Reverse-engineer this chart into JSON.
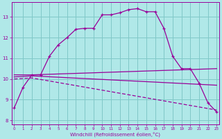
{
  "xlabel": "Windchill (Refroidissement éolien,°C)",
  "bg_color": "#b0e8e8",
  "grid_color": "#80c8c8",
  "line_color": "#990099",
  "x_ticks": [
    0,
    1,
    2,
    3,
    4,
    5,
    6,
    7,
    8,
    9,
    10,
    11,
    12,
    13,
    14,
    15,
    16,
    17,
    18,
    19,
    20,
    21,
    22,
    23
  ],
  "y_ticks": [
    8,
    9,
    10,
    11,
    12,
    13
  ],
  "ylim": [
    7.8,
    13.7
  ],
  "xlim": [
    -0.3,
    23.3
  ],
  "curve1_x": [
    0,
    1,
    2,
    3,
    4,
    5,
    6,
    7,
    8,
    9,
    10,
    11,
    12,
    13,
    14,
    15,
    16,
    17,
    18,
    19,
    20,
    21,
    22,
    23
  ],
  "curve1_y": [
    8.6,
    9.6,
    10.2,
    10.2,
    11.1,
    11.65,
    12.0,
    12.4,
    12.45,
    12.45,
    13.1,
    13.1,
    13.2,
    13.35,
    13.4,
    13.25,
    13.25,
    12.45,
    11.1,
    10.5,
    10.5,
    9.8,
    8.85,
    8.4
  ],
  "curve2_x": [
    0,
    2,
    23
  ],
  "curve2_y": [
    10.2,
    10.2,
    10.5
  ],
  "curve3_x": [
    0,
    2,
    23
  ],
  "curve3_y": [
    10.1,
    10.15,
    9.7
  ],
  "curve4_x": [
    0,
    2,
    23
  ],
  "curve4_y": [
    10.0,
    10.05,
    8.5
  ]
}
